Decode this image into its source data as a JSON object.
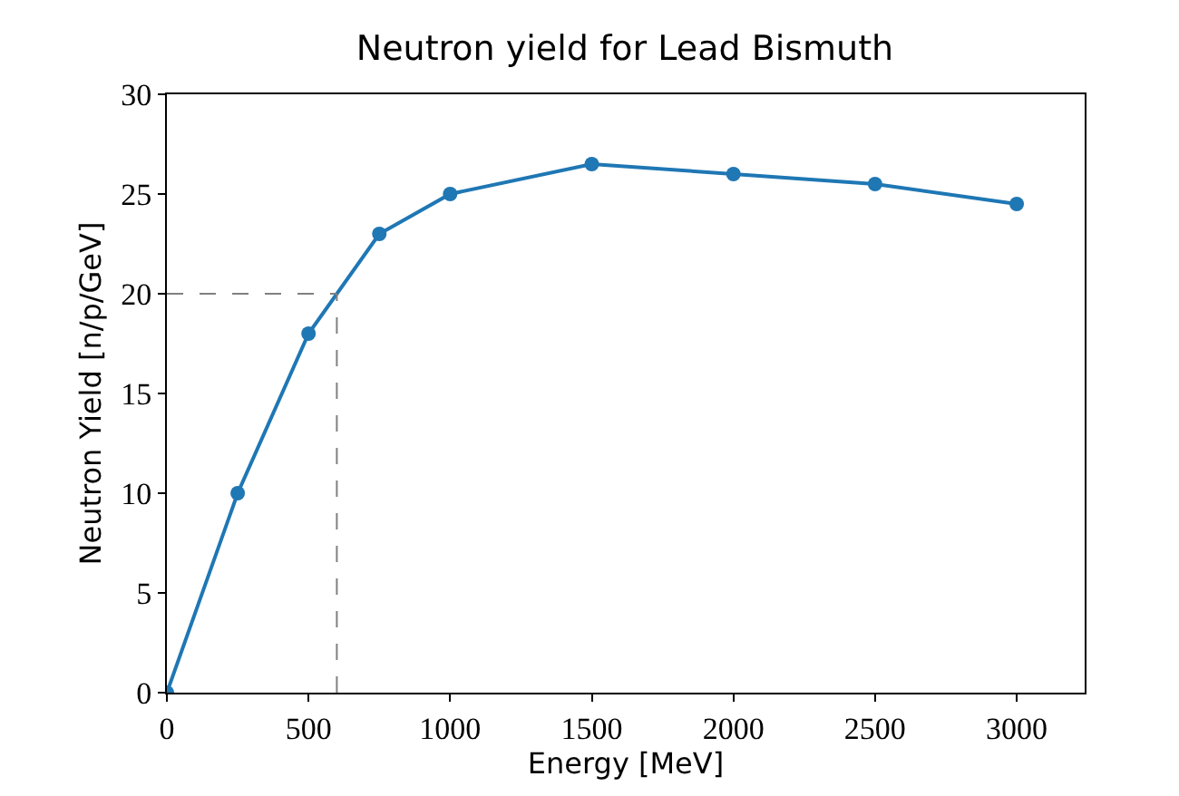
{
  "chart_data": {
    "type": "line",
    "title": "Neutron yield for Lead Bismuth",
    "xlabel": "Energy [MeV]",
    "ylabel": "Neutron Yield [n/p/GeV]",
    "x": [
      0,
      250,
      500,
      750,
      1000,
      1500,
      2000,
      2500,
      3000
    ],
    "series": [
      {
        "color": "#1f77b4",
        "values": [
          0,
          10,
          18,
          23,
          25,
          26.5,
          26,
          25.5,
          24.5
        ]
      }
    ],
    "xlim": [
      0,
      3240
    ],
    "xticks": [
      0,
      500,
      1000,
      1500,
      2000,
      2500,
      3000
    ],
    "ylim": [
      0,
      30
    ],
    "yticks": [
      0,
      5,
      10,
      15,
      20,
      25,
      30
    ],
    "ref_lines": [
      {
        "axis": "x",
        "value": 600,
        "color": "#808080",
        "line_style": "dashed"
      },
      {
        "axis": "y",
        "value": 20,
        "color": "#808080",
        "line_style": "dashed"
      }
    ],
    "marker": "circle",
    "line_style": "solid"
  }
}
